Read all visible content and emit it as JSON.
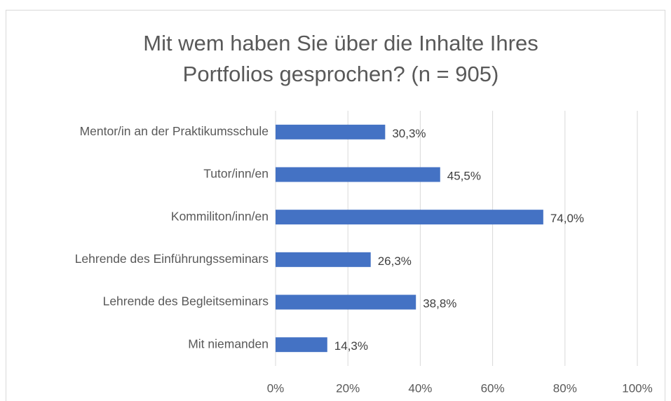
{
  "chart_data": {
    "type": "bar",
    "orientation": "horizontal",
    "title": [
      "Mit wem haben Sie über die Inhalte Ihres",
      "Portfolios gesprochen?  (n = 905)"
    ],
    "categories": [
      "Mentor/in an der Praktikumsschule",
      "Tutor/inn/en",
      "Kommiliton/inn/en",
      "Lehrende des Einführungsseminars",
      "Lehrende des Begleitseminars",
      "Mit niemanden"
    ],
    "values": [
      30.3,
      45.5,
      74.0,
      26.3,
      38.8,
      14.3
    ],
    "value_labels": [
      "30,3%",
      "45,5%",
      "74,0%",
      "26,3%",
      "38,8%",
      "14,3%"
    ],
    "color": "#4472c4",
    "xlim": [
      0,
      100
    ],
    "xticks": [
      {
        "value": 0,
        "label": "0%"
      },
      {
        "value": 20,
        "label": "20%"
      },
      {
        "value": 40,
        "label": "40%"
      },
      {
        "value": 60,
        "label": "60%"
      },
      {
        "value": 80,
        "label": "80%"
      },
      {
        "value": 100,
        "label": "100%"
      }
    ],
    "grid": true
  }
}
